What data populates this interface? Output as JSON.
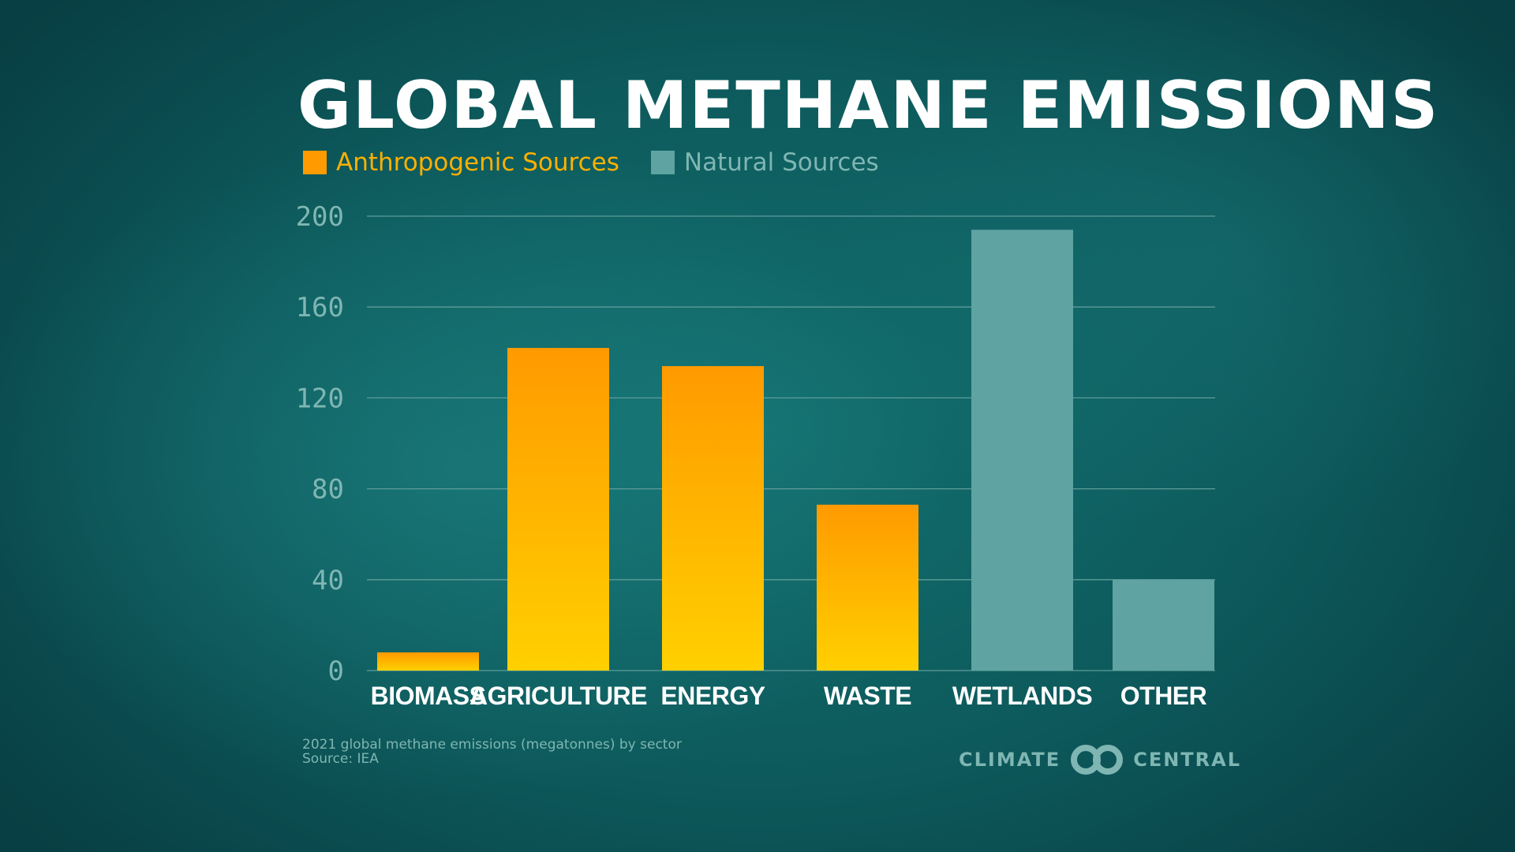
{
  "title": "GLOBAL METHANE EMISSIONS",
  "legend": [
    {
      "label": "Anthropogenic Sources",
      "color": "#ff9a00",
      "text_color": "#ffb000"
    },
    {
      "label": "Natural Sources",
      "color": "#5fa3a3",
      "text_color": "#7fb6b3"
    }
  ],
  "note": {
    "line1": "2021 global methane emissions (megatonnes) by sector",
    "line2": "Source: IEA"
  },
  "brand": {
    "left": "CLIMATE",
    "right": "CENTRAL"
  },
  "colors": {
    "anthro_top": "#ff9a00",
    "anthro_bottom": "#ffd000",
    "natural": "#5fa3a3",
    "grid": "#5d9c9a"
  },
  "chart_data": {
    "type": "bar",
    "title": "GLOBAL METHANE EMISSIONS",
    "categories": [
      "BIOMASS",
      "AGRICULTURE",
      "ENERGY",
      "WASTE",
      "WETLANDS",
      "OTHER"
    ],
    "values": [
      8,
      142,
      134,
      73,
      194,
      40
    ],
    "source_group": [
      "Anthropogenic Sources",
      "Anthropogenic Sources",
      "Anthropogenic Sources",
      "Anthropogenic Sources",
      "Natural Sources",
      "Natural Sources"
    ],
    "y_ticks": [
      0,
      40,
      80,
      120,
      160,
      200
    ],
    "ylim": [
      0,
      200
    ],
    "xlabel": "",
    "ylabel": "",
    "grid": true,
    "legend_position": "top-left"
  }
}
